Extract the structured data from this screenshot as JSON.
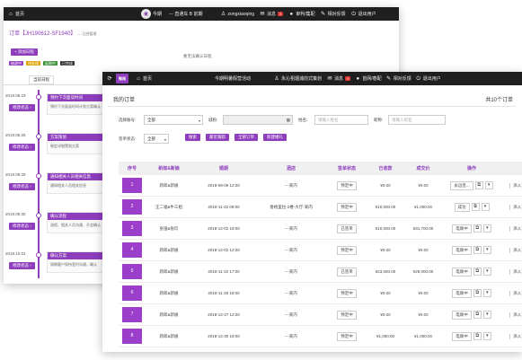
{
  "back": {
    "topbar": {
      "home": "首页",
      "today": "今期",
      "nav": "--- 直通车 B 前期",
      "user": "zongxiaoqing",
      "msg": "消息",
      "msg_badge": "9",
      "mine": "审判/集配",
      "feedback": "相对反馈",
      "logout": "退出用户"
    },
    "title": "订单【JH190612-SF1940】",
    "title_sub": "----已经管理",
    "add_btn": "+ 添加日程",
    "center_text": "要无法确认日程",
    "tags": [
      "修改中",
      "待处理",
      "延期中",
      "已完成"
    ],
    "tab": "当前日程",
    "events": [
      {
        "date": "2019.06.19",
        "side": "修改状态 ›",
        "head": "预约下次面谈时间",
        "body": "预约下次面谈时间计划方案确认"
      },
      {
        "date": "2019.06.26",
        "side": "修改状态 ›",
        "head": "方案策划",
        "body": "制定详细策划方案"
      },
      {
        "date": "2019.09.29",
        "side": "修改状态 ›",
        "head": "通知相关人员相关信息",
        "body": "通知相关人员相关信息"
      },
      {
        "date": "2019.09.30",
        "side": "修改状态 ›",
        "head": "确认流程",
        "body": "流程、相关人员沟通、开会确认"
      },
      {
        "date": "2018.10.01",
        "side": "修改状态 ›",
        "head": "确认方案",
        "body": "周期客户保持签约沟通，确认"
      }
    ]
  },
  "front": {
    "topbar": {
      "logo": "微阅",
      "home": "首页",
      "event": "今期明暑假营活动",
      "user": "永沁祖烟浦前式策划",
      "msg": "消息",
      "msg_badge": "9",
      "mine": "首网/春配",
      "feedback": "相对反馈",
      "logout": "退出用户"
    },
    "title": "我的订单",
    "total": "共10个订单",
    "filters": {
      "region_label": "选择账号:",
      "region_value": "全部",
      "phone_label": "城粉:",
      "phone_placeholder": "",
      "name_label": "姓名:",
      "name_placeholder": "请输入姓名",
      "mail_label": "昵称:",
      "mail_placeholder": "请输入昵名",
      "status_label": "签单状态:",
      "status_value": "全部"
    },
    "buttons": [
      "搜索",
      "最近跟踪",
      "全部订单",
      "新建婚礼"
    ],
    "columns": [
      "序号",
      "新郎&新娘",
      "婚期",
      "酒店",
      "签单状态",
      "已收款",
      "成交价",
      "操作"
    ],
    "rows": [
      {
        "n": "1",
        "couple": "新郎&新娘",
        "date": "2019-09-09 12:00",
        "hotel": "---某内",
        "status": "预定中",
        "paid": "¥0.00",
        "price": "¥0.00",
        "op": "永远签...",
        "extra": "添入订"
      },
      {
        "n": "2",
        "couple": "王二福&牛三姐",
        "date": "2018-11-22 09:00",
        "hotel": "香格里拉-2楼-大厅-某内",
        "status": "预定中",
        "paid": "¥10,000.00",
        "price": "¥1,000.00",
        "op": "成功",
        "extra": "添入订"
      },
      {
        "n": "3",
        "couple": "张强&张珍",
        "date": "2018-12-02 19:00",
        "hotel": "---某内",
        "status": "已签单",
        "paid": "¥10,000.00",
        "price": "¥31,700.00",
        "op": "电联中",
        "extra": "添入订"
      },
      {
        "n": "4",
        "couple": "新郎&新娘",
        "date": "2018-12-02 12:00",
        "hotel": "---某内",
        "status": "预定中",
        "paid": "¥0.00",
        "price": "¥0.00",
        "op": "电联中",
        "extra": "添入订"
      },
      {
        "n": "5",
        "couple": "新郎&新娘",
        "date": "2018-11-10 17:00",
        "hotel": "---某内",
        "status": "已签单",
        "paid": "¥23,000.00",
        "price": "¥29,000.00",
        "op": "电联中",
        "extra": "添入订"
      },
      {
        "n": "6",
        "couple": "新郎&新娘",
        "date": "2018-11-28 19:00",
        "hotel": "---某内",
        "status": "预定中",
        "paid": "¥0.00",
        "price": "¥0.00",
        "op": "电联中",
        "extra": "添入订"
      },
      {
        "n": "7",
        "couple": "新郎&新娘",
        "date": "2018-12-27 12:00",
        "hotel": "---某内",
        "status": "预定中",
        "paid": "¥0.00",
        "price": "¥0.00",
        "op": "电联中",
        "extra": "添入订"
      },
      {
        "n": "8",
        "couple": "新郎&新娘",
        "date": "2018-12-30 19:00",
        "hotel": "---某内",
        "status": "预定中",
        "paid": "¥1,000.00",
        "price": "¥1,000.00",
        "op": "电联中",
        "extra": "添入订"
      }
    ]
  },
  "colors": {
    "accent": "#8e3dbd",
    "topbar": "#1f1f1f"
  }
}
